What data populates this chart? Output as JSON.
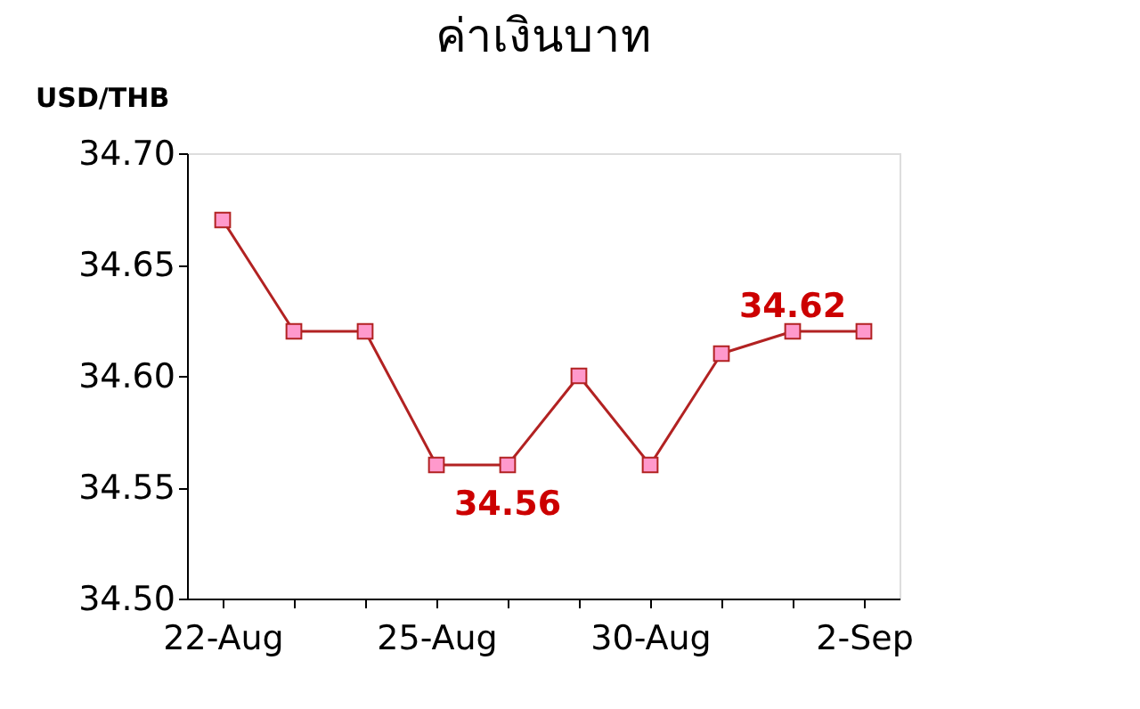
{
  "chart_data": {
    "type": "line",
    "title": "ค่าเงินบาท",
    "ylabel": "USD/THB",
    "categories": [
      "22-Aug",
      null,
      null,
      "25-Aug",
      null,
      null,
      "30-Aug",
      null,
      null,
      "2-Sep"
    ],
    "series": [
      {
        "color": "#b22222",
        "values": [
          34.67,
          34.62,
          34.62,
          34.56,
          34.56,
          34.6,
          34.56,
          34.61,
          34.62,
          34.62
        ],
        "value_labels": [
          null,
          null,
          null,
          null,
          "34.56",
          null,
          null,
          null,
          "34.62",
          null
        ]
      }
    ],
    "ylim": [
      34.5,
      34.7
    ],
    "yticks": [
      {
        "value": 34.5,
        "label": "34.50"
      },
      {
        "value": 34.55,
        "label": "34.55"
      },
      {
        "value": 34.6,
        "label": "34.60"
      },
      {
        "value": 34.65,
        "label": "34.65"
      },
      {
        "value": 34.7,
        "label": "34.70"
      }
    ],
    "marker": "square",
    "line_style": "solid",
    "grid": false
  }
}
